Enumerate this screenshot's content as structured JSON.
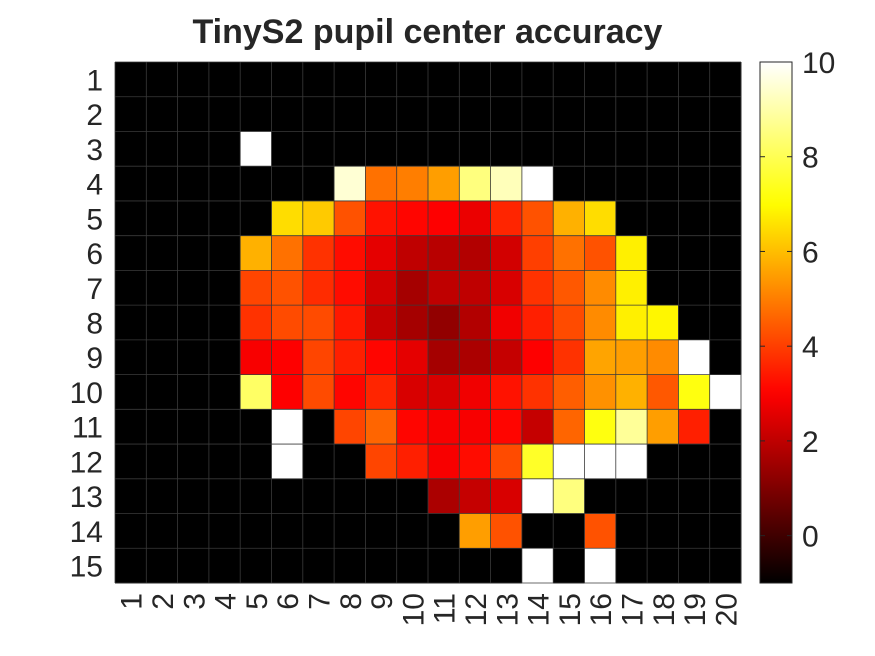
{
  "chart_data": {
    "type": "heatmap",
    "title": "TinyS2 pupil center accuracy",
    "xlabel": "",
    "ylabel": "",
    "x_categories": [
      "1",
      "2",
      "3",
      "4",
      "5",
      "6",
      "7",
      "8",
      "9",
      "10",
      "11",
      "12",
      "13",
      "14",
      "15",
      "16",
      "17",
      "18",
      "19",
      "20"
    ],
    "y_categories": [
      "1",
      "2",
      "3",
      "4",
      "5",
      "6",
      "7",
      "8",
      "9",
      "10",
      "11",
      "12",
      "13",
      "14",
      "15"
    ],
    "values": [
      [
        -1,
        -1,
        -1,
        -1,
        -1,
        -1,
        -1,
        -1,
        -1,
        -1,
        -1,
        -1,
        -1,
        -1,
        -1,
        -1,
        -1,
        -1,
        -1,
        -1
      ],
      [
        -1,
        -1,
        -1,
        -1,
        -1,
        -1,
        -1,
        -1,
        -1,
        -1,
        -1,
        -1,
        -1,
        -1,
        -1,
        -1,
        -1,
        -1,
        -1,
        -1
      ],
      [
        -1,
        -1,
        -1,
        -1,
        10,
        -1,
        -1,
        -1,
        -1,
        -1,
        -1,
        -1,
        -1,
        -1,
        -1,
        -1,
        -1,
        -1,
        -1,
        -1
      ],
      [
        -1,
        -1,
        -1,
        -1,
        -1,
        -1,
        -1,
        9.5,
        4.8,
        5.0,
        5.5,
        8.5,
        9.2,
        10,
        -1,
        -1,
        -1,
        -1,
        -1,
        -1
      ],
      [
        -1,
        -1,
        -1,
        -1,
        -1,
        6.5,
        6.2,
        4.3,
        3.3,
        3.1,
        3.0,
        2.7,
        3.6,
        4.3,
        5.8,
        6.5,
        -1,
        -1,
        -1,
        -1
      ],
      [
        -1,
        -1,
        -1,
        -1,
        5.8,
        4.8,
        3.8,
        3.2,
        2.6,
        2.0,
        1.9,
        1.8,
        2.3,
        4.0,
        4.8,
        4.3,
        6.8,
        -1,
        -1,
        -1
      ],
      [
        -1,
        -1,
        -1,
        -1,
        4.1,
        4.3,
        3.7,
        3.2,
        2.3,
        1.6,
        2.0,
        2.0,
        2.4,
        3.8,
        4.4,
        5.2,
        6.8,
        -1,
        -1,
        -1
      ],
      [
        -1,
        -1,
        -1,
        -1,
        3.8,
        4.2,
        4.2,
        3.4,
        2.1,
        1.6,
        1.3,
        1.8,
        2.8,
        3.5,
        4.2,
        5.2,
        6.8,
        6.9,
        -1,
        -1
      ],
      [
        -1,
        -1,
        -1,
        -1,
        2.9,
        3.0,
        4.1,
        3.5,
        3.1,
        2.6,
        1.6,
        1.7,
        2.1,
        3.0,
        3.8,
        5.6,
        5.5,
        5.2,
        10,
        -1
      ],
      [
        -1,
        -1,
        -1,
        -1,
        8.2,
        3.0,
        4.2,
        3.1,
        3.6,
        2.4,
        2.4,
        2.8,
        3.3,
        3.8,
        4.5,
        5.3,
        5.8,
        4.4,
        7.2,
        10
      ],
      [
        -1,
        -1,
        -1,
        -1,
        -1,
        10,
        -1,
        4.1,
        4.6,
        3.1,
        2.9,
        2.9,
        3.1,
        2.1,
        4.6,
        7.2,
        8.8,
        5.5,
        3.5,
        -1
      ],
      [
        -1,
        -1,
        -1,
        -1,
        -1,
        10,
        -1,
        -1,
        4.1,
        3.5,
        2.9,
        3.2,
        4.2,
        7.5,
        10,
        10,
        10,
        -1,
        -1,
        -1
      ],
      [
        -1,
        -1,
        -1,
        -1,
        -1,
        -1,
        -1,
        -1,
        -1,
        -1,
        1.7,
        2.1,
        2.4,
        10,
        8.5,
        -1,
        -1,
        -1,
        -1,
        -1
      ],
      [
        -1,
        -1,
        -1,
        -1,
        -1,
        -1,
        -1,
        -1,
        -1,
        -1,
        -1,
        5.5,
        4.3,
        -1,
        -1,
        4.3,
        -1,
        -1,
        -1,
        -1
      ],
      [
        -1,
        -1,
        -1,
        -1,
        -1,
        -1,
        -1,
        -1,
        -1,
        -1,
        -1,
        -1,
        -1,
        10,
        -1,
        10,
        -1,
        -1,
        -1,
        -1
      ]
    ],
    "clim": [
      -1,
      10
    ],
    "colormap": "hot",
    "colorbar": {
      "ticks": [
        0,
        2,
        4,
        6,
        8,
        10
      ],
      "tick_labels": [
        "0",
        "2",
        "4",
        "6",
        "8",
        "10"
      ]
    },
    "grid": true,
    "grid_color": "#3a3a3a"
  }
}
